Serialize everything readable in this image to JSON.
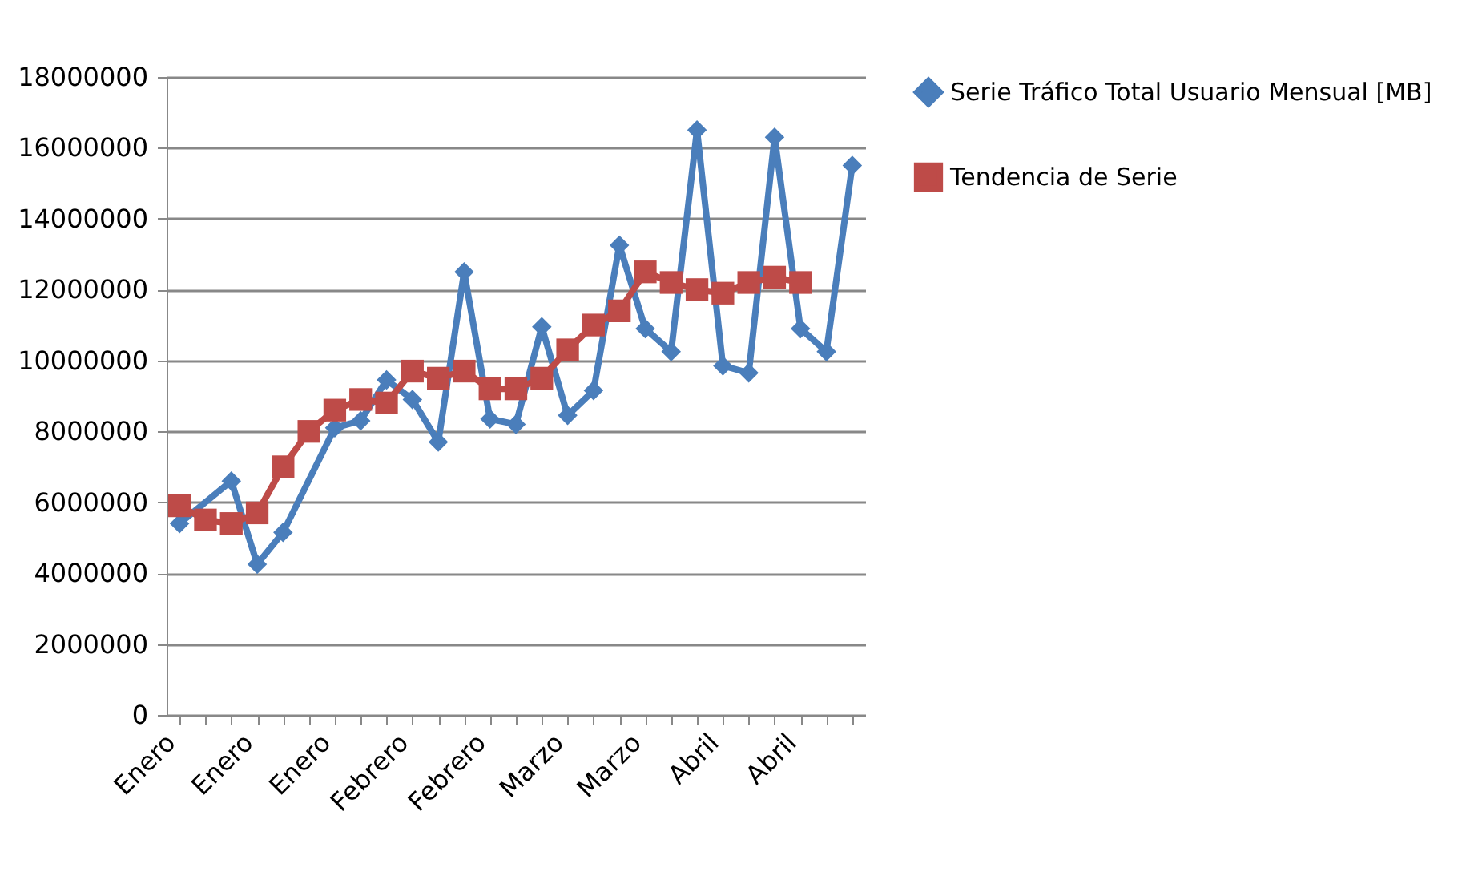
{
  "chart_data": {
    "type": "line",
    "categories": [
      "Enero",
      null,
      null,
      "Enero",
      null,
      null,
      "Enero",
      null,
      null,
      "Febrero",
      null,
      null,
      "Febrero",
      null,
      null,
      "Marzo",
      null,
      null,
      "Marzo",
      null,
      null,
      "Abril",
      null,
      null,
      "Abril",
      null,
      null
    ],
    "series": [
      {
        "name": "Serie Tráfico Total Usuario Mensual [MB]",
        "color": "#4a7ebb",
        "marker": "diamond",
        "values": [
          5400000,
          null,
          6600000,
          4250000,
          5150000,
          null,
          8100000,
          8300000,
          9450000,
          8900000,
          7700000,
          12500000,
          8350000,
          8200000,
          10950000,
          8450000,
          9150000,
          13250000,
          10900000,
          10250000,
          16500000,
          9850000,
          9650000,
          16300000,
          10900000,
          10250000,
          15500000
        ]
      },
      {
        "name": "Tendencia de Serie",
        "color": "#be4b48",
        "marker": "square",
        "values": [
          5900000,
          5500000,
          5400000,
          5700000,
          7000000,
          8000000,
          8600000,
          8900000,
          8800000,
          9700000,
          9500000,
          9700000,
          9200000,
          9200000,
          9500000,
          10300000,
          11000000,
          11400000,
          12500000,
          12200000,
          12000000,
          11900000,
          12200000,
          12350000,
          12200000,
          null,
          null
        ]
      }
    ],
    "ylim": [
      0,
      18000000
    ],
    "yticks": [
      0,
      2000000,
      4000000,
      6000000,
      8000000,
      10000000,
      12000000,
      14000000,
      16000000,
      18000000
    ],
    "grid": "y",
    "legend": "right"
  }
}
